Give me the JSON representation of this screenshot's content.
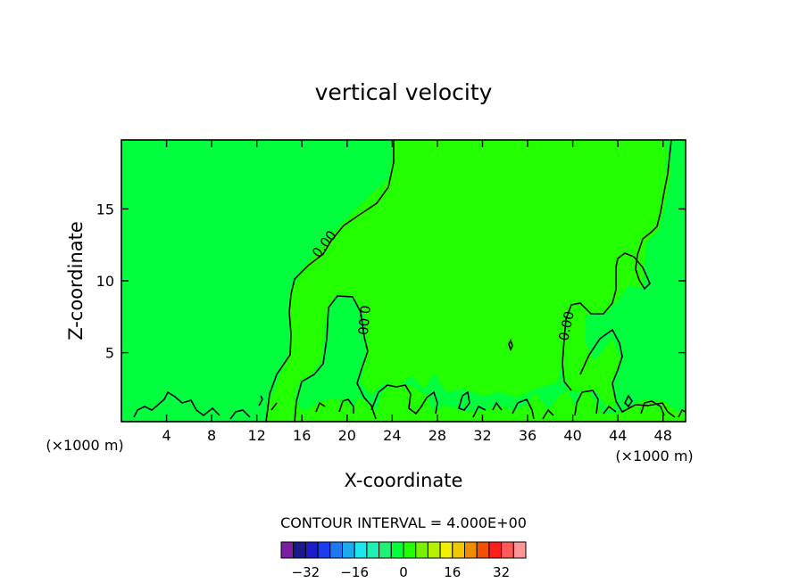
{
  "chart_data": {
    "type": "contour",
    "title": "vertical velocity",
    "xlabel": "X-coordinate",
    "ylabel": "Z-coordinate",
    "x_unit": "(×1000 m)",
    "x_unit_right": "(×1000 m)",
    "xlim": [
      0,
      50
    ],
    "ylim": [
      0.2,
      19.8
    ],
    "x_ticks": [
      4,
      8,
      12,
      16,
      20,
      24,
      28,
      32,
      36,
      40,
      44,
      48
    ],
    "y_ticks": [
      5,
      10,
      15
    ],
    "contour_interval_text": "CONTOUR INTERVAL = 4.000E+00",
    "contour_labels": [
      "0.00",
      "0.00",
      "0.00"
    ],
    "fill_levels": [
      -36,
      -32,
      -28,
      -24,
      -20,
      -16,
      -12,
      -8,
      -4,
      0,
      4,
      8,
      12,
      16,
      20,
      24,
      28,
      32,
      36
    ],
    "colorbar": {
      "colors": [
        "#7a1fa2",
        "#1a1a8c",
        "#1c1cc8",
        "#1c3cf0",
        "#1e78f0",
        "#1eaaf0",
        "#1ee6f0",
        "#1ef0b4",
        "#1ef078",
        "#00ff3c",
        "#24ff00",
        "#78f000",
        "#b4f000",
        "#f0f000",
        "#f0c800",
        "#f08c00",
        "#f05000",
        "#ff1e1e",
        "#ff5a5a",
        "#ff9696"
      ],
      "tick_labels": [
        "-32",
        "-16",
        "0",
        "16",
        "32"
      ],
      "tick_values": [
        -32,
        -16,
        0,
        16,
        32
      ]
    },
    "regions": [
      {
        "name": "w < 0",
        "color": "#00ff3c"
      },
      {
        "name": "0 < w < 4",
        "color": "#24ff00"
      }
    ]
  }
}
